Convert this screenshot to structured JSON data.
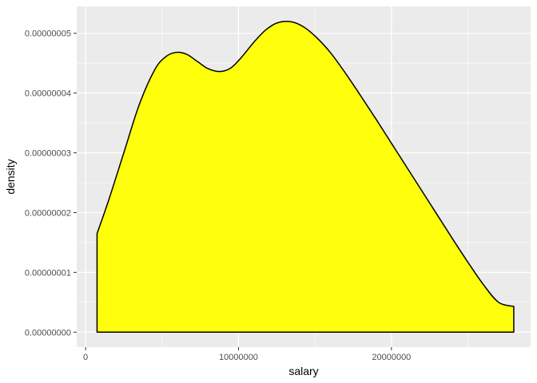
{
  "chart_data": {
    "type": "area",
    "xlabel": "salary",
    "ylabel": "density",
    "xlim": [
      -580000,
      29100000
    ],
    "ylim": [
      -2.5e-09,
      5.45e-08
    ],
    "x_ticks": [
      {
        "value": 0,
        "label": "0"
      },
      {
        "value": 10000000,
        "label": "10000000"
      },
      {
        "value": 20000000,
        "label": "20000000"
      }
    ],
    "y_ticks": [
      {
        "value": 0,
        "label": "0.00000000"
      },
      {
        "value": 1e-08,
        "label": "0.00000001"
      },
      {
        "value": 2e-08,
        "label": "0.00000002"
      },
      {
        "value": 3e-08,
        "label": "0.00000003"
      },
      {
        "value": 4e-08,
        "label": "0.00000004"
      },
      {
        "value": 5e-08,
        "label": "0.00000005"
      }
    ],
    "grid": true,
    "fill_color": "#FFFF0B",
    "line_color": "#000000",
    "panel_background": "#EBEBEB",
    "x": [
      750000,
      1500000,
      2500000,
      3500000,
      4500000,
      5200000,
      5900000,
      6600000,
      7300000,
      8000000,
      8800000,
      9500000,
      10200000,
      11000000,
      11800000,
      12600000,
      13500000,
      14300000,
      15100000,
      16000000,
      17000000,
      18000000,
      19000000,
      20000000,
      21000000,
      22000000,
      23000000,
      24000000,
      25000000,
      26000000,
      27000000,
      28000000
    ],
    "y": [
      1.65e-08,
      2.2e-08,
      3e-08,
      3.8e-08,
      4.38e-08,
      4.6e-08,
      4.68e-08,
      4.65e-08,
      4.53e-08,
      4.41e-08,
      4.36e-08,
      4.42e-08,
      4.6e-08,
      4.85e-08,
      5.06e-08,
      5.18e-08,
      5.19e-08,
      5.1e-08,
      4.93e-08,
      4.68e-08,
      4.33e-08,
      3.95e-08,
      3.56e-08,
      3.16e-08,
      2.76e-08,
      2.36e-08,
      1.96e-08,
      1.56e-08,
      1.17e-08,
      8e-09,
      5e-09,
      4.3e-09
    ]
  }
}
